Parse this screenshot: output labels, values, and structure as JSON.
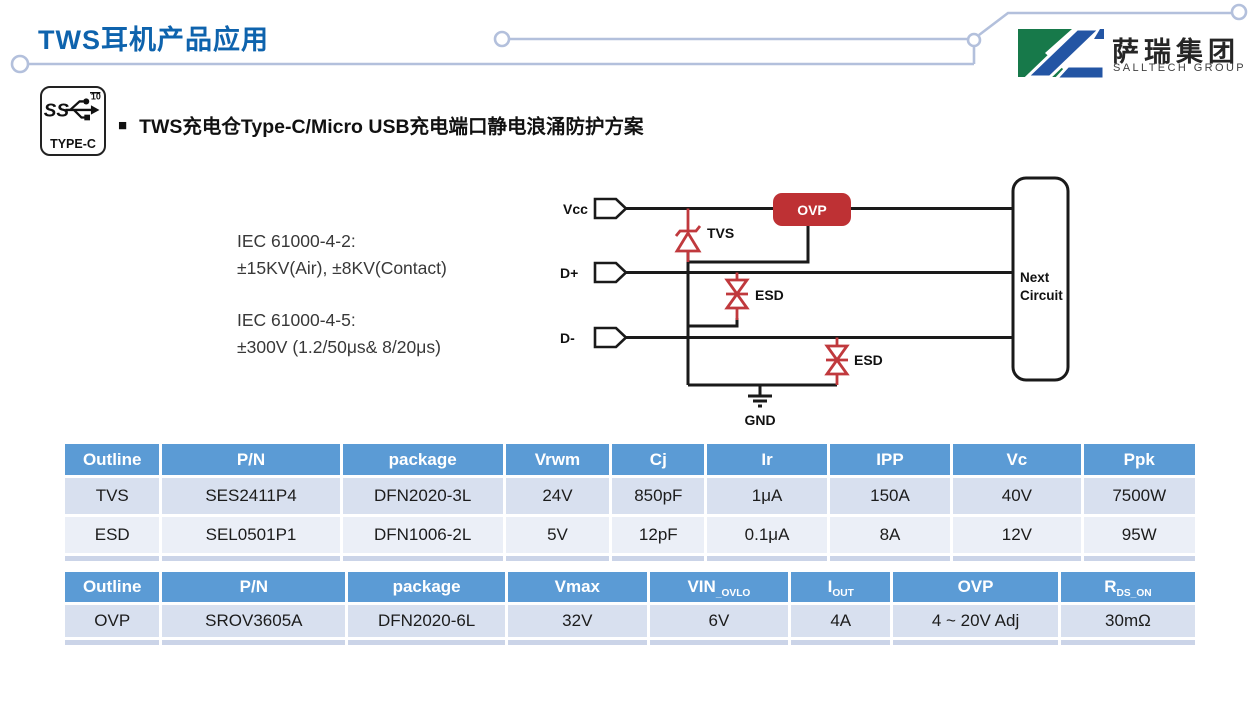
{
  "page": {
    "title": "TWS耳机产品应用"
  },
  "logo": {
    "name_cn": "萨瑞集团",
    "name_en": "SALLTECH GROUP"
  },
  "badge": {
    "ss": "SS",
    "sup": "10",
    "label": "TYPE-C"
  },
  "section": {
    "bullet": "■",
    "heading": "TWS充电仓Type-C/Micro USB充电端口静电浪涌防护方案"
  },
  "standards": {
    "line1": "IEC 61000-4-2:",
    "line2": "±15KV(Air), ±8KV(Contact)",
    "line3": "IEC 61000-4-5:",
    "line4": "±300V  (1.2/50μs& 8/20μs)"
  },
  "circuit": {
    "labels": {
      "vcc": "Vcc",
      "dplus": "D+",
      "dminus": "D-",
      "tvs": "TVS",
      "esd_dplus": "ESD",
      "esd_dminus": "ESD",
      "ovp": "OVP",
      "gnd": "GND",
      "next1": "Next",
      "next2": "Circuit"
    }
  },
  "colors": {
    "title_blue": "#0e63ad",
    "table_header_blue": "#5b9bd5",
    "row_light": "#d8e0ef",
    "row_lighter": "#ebeff7",
    "ovp_red": "#be3134",
    "diode_red": "#c0393d",
    "trace_gray_blue": "#b3c0dc",
    "logo_green": "#17794a",
    "logo_blue": "#2355a4"
  },
  "tables": {
    "tvs_esd": {
      "headers": [
        "Outline",
        "P/N",
        "package",
        "Vrwm",
        "Cj",
        "Ir",
        "IPP",
        "Vc",
        "Ppk"
      ],
      "rows": [
        [
          "TVS",
          "SES2411P4",
          "DFN2020-3L",
          "24V",
          "850pF",
          "1μA",
          "150A",
          "40V",
          "7500W"
        ],
        [
          "ESD",
          "SEL0501P1",
          "DFN1006-2L",
          "5V",
          "12pF",
          "0.1μA",
          "8A",
          "12V",
          "95W"
        ]
      ]
    },
    "ovp": {
      "headers": [
        "Outline",
        "P/N",
        "package",
        "Vmax",
        {
          "base": "VIN",
          "sub": "_OVLO"
        },
        {
          "base": "I",
          "sub": "OUT"
        },
        "OVP",
        {
          "base": "R",
          "sub": "DS_ON"
        }
      ],
      "rows": [
        [
          "OVP",
          "SROV3605A",
          "DFN2020-6L",
          "32V",
          "6V",
          "4A",
          "4 ~ 20V Adj",
          "30mΩ"
        ]
      ]
    }
  }
}
